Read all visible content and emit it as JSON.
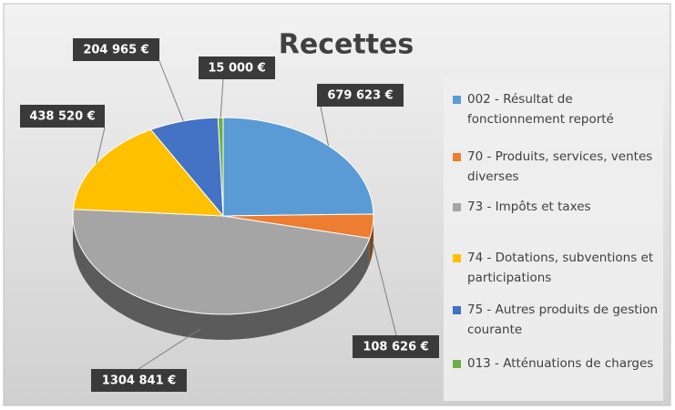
{
  "chart_data": {
    "type": "pie",
    "title": "Recettes",
    "categories": [
      "002 - Résultat de fonctionnement reporté",
      "70 - Produits, services, ventes diverses",
      "73 - Impôts et taxes",
      "74 - Dotations, subventions et participations",
      "75 - Autres produits de gestion courante",
      "013 - Atténuations de charges"
    ],
    "values": [
      679623,
      108626,
      1304841,
      438520,
      204965,
      15000
    ],
    "value_labels": [
      "679 623 €",
      "108 626 €",
      "1304 841 €",
      "438 520 €",
      "204 965 €",
      "15 000 €"
    ],
    "colors": [
      "#5b9bd5",
      "#ed7d31",
      "#a5a5a5",
      "#ffc000",
      "#4472c4",
      "#70ad47"
    ],
    "legend": "right"
  }
}
